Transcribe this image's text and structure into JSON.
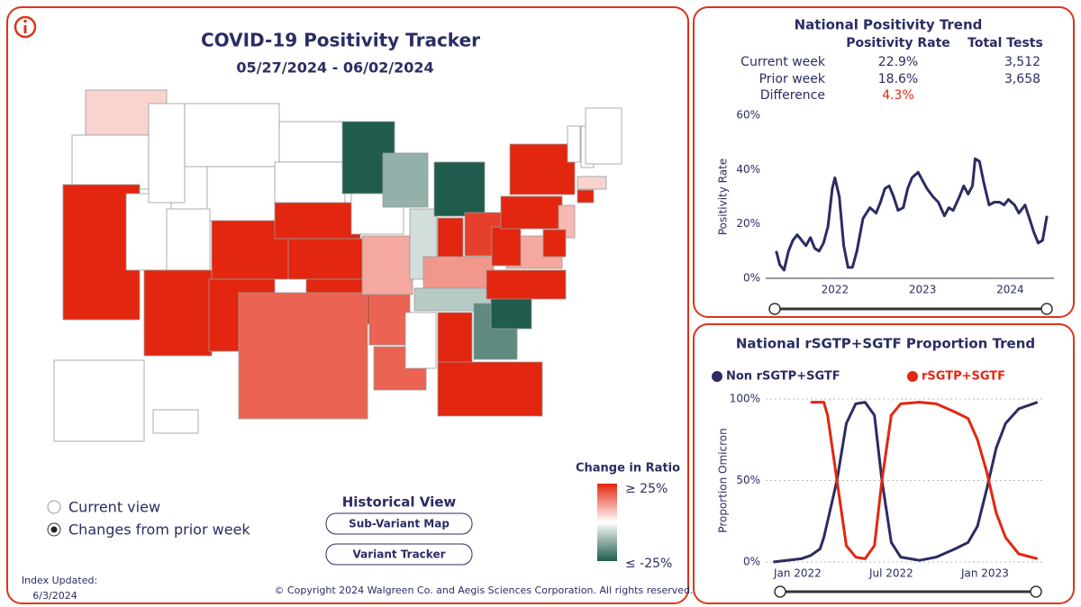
{
  "header": {
    "title": "COVID-19 Positivity Tracker",
    "date_range": "05/27/2024 - 06/02/2024"
  },
  "view_options": {
    "options": [
      "Current view",
      "Changes from prior week"
    ],
    "selected": 1
  },
  "historical_view": {
    "title": "Historical View",
    "buttons": [
      "Sub-Variant Map",
      "Variant Tracker"
    ]
  },
  "index_updated": {
    "label": "Index Updated:",
    "date": "6/3/2024"
  },
  "copyright": "© Copyright 2024 Walgreen Co. and Aegis Sciences Corporation. All rights reserved.",
  "summary": {
    "title": "National Positivity Trend",
    "columns": [
      "Positivity Rate",
      "Total Tests"
    ],
    "rows": [
      [
        "Current week",
        "22.9%",
        "3,512"
      ],
      [
        "Prior week",
        "18.6%",
        "3,658"
      ],
      [
        "Difference",
        "4.3%"
      ]
    ]
  },
  "chart_data": [
    {
      "type": "choropleth",
      "legend_title": "Change in Ratio",
      "scale": [
        {
          "value": 25,
          "label": "≥ 25%"
        },
        {
          "value": -25,
          "label": "≤ -25%"
        }
      ],
      "colors": {
        "high": "#e3260f",
        "mid": "#ffffff",
        "low": "#1f5c4e"
      },
      "values": [
        5,
        0,
        25,
        0,
        0,
        0,
        0,
        0,
        25,
        25,
        25,
        0,
        0,
        25,
        25,
        25,
        18,
        -25,
        0,
        10,
        18,
        18,
        -12,
        -5,
        -25,
        25,
        22,
        12,
        -8,
        0,
        25,
        -18,
        25,
        -25,
        25,
        10,
        25,
        25,
        25,
        0,
        0,
        0,
        5,
        25,
        8,
        25,
        0,
        0
      ]
    },
    {
      "type": "line",
      "y_label": "Positivity Rate",
      "color": "#2b2c63",
      "x": [
        2021.33,
        2021.37,
        2021.42,
        2021.47,
        2021.52,
        2021.57,
        2021.62,
        2021.67,
        2021.72,
        2021.77,
        2021.82,
        2021.87,
        2021.92,
        2021.97,
        2022.0,
        2022.05,
        2022.1,
        2022.15,
        2022.2,
        2022.25,
        2022.32,
        2022.4,
        2022.47,
        2022.52,
        2022.57,
        2022.62,
        2022.67,
        2022.72,
        2022.78,
        2022.83,
        2022.88,
        2022.95,
        2023.0,
        2023.05,
        2023.12,
        2023.18,
        2023.25,
        2023.3,
        2023.35,
        2023.42,
        2023.47,
        2023.52,
        2023.57,
        2023.6,
        2023.65,
        2023.7,
        2023.76,
        2023.82,
        2023.88,
        2023.93,
        2023.98,
        2024.05,
        2024.1,
        2024.17,
        2024.22,
        2024.27,
        2024.32,
        2024.37,
        2024.42
      ],
      "values": [
        10,
        5,
        3,
        10,
        14,
        16,
        14,
        12,
        15,
        11,
        10,
        13,
        19,
        33,
        37,
        30,
        12,
        4,
        4,
        10,
        22,
        26,
        24,
        28,
        33,
        34,
        30,
        25,
        26,
        33,
        37,
        39,
        36,
        33,
        30,
        28,
        23,
        26,
        25,
        30,
        34,
        31,
        34,
        44,
        43,
        35,
        27,
        28,
        28,
        27,
        29,
        27,
        24,
        27,
        22,
        17,
        13,
        14,
        23
      ],
      "xlim": [
        2021.21,
        2024.5
      ],
      "xticks": [
        2022,
        2023,
        2024
      ],
      "ylim": [
        0,
        60
      ],
      "yticks": [
        {
          "value": 0,
          "label": "0%"
        },
        {
          "value": 20,
          "label": "20%"
        },
        {
          "value": 40,
          "label": "40%"
        },
        {
          "value": 60,
          "label": "60%"
        }
      ],
      "grid": false
    },
    {
      "type": "line",
      "title": "National rSGTP+SGTF Proportion Trend",
      "y_label": "Proportion Omicron",
      "x": [
        2021.87,
        2022.02,
        2022.07,
        2022.12,
        2022.14,
        2022.16,
        2022.21,
        2022.26,
        2022.31,
        2022.36,
        2022.41,
        2022.45,
        2022.5,
        2022.55,
        2022.65,
        2022.74,
        2022.84,
        2022.91,
        2022.96,
        2023.01,
        2023.06,
        2023.11,
        2023.18,
        2023.28
      ],
      "series": [
        {
          "name": "Non rSGTP+SGTF",
          "color": "#2b2c63",
          "values": [
            0,
            2,
            4,
            8,
            15,
            25,
            50,
            85,
            97,
            98,
            90,
            50,
            12,
            3,
            1,
            3,
            8,
            12,
            22,
            45,
            70,
            85,
            94,
            98
          ]
        },
        {
          "name": "rSGTP+SGTF",
          "color": "#e3260f",
          "values": [
            null,
            null,
            98,
            98,
            98,
            90,
            50,
            10,
            3,
            2,
            10,
            50,
            90,
            97,
            98,
            97,
            92,
            88,
            75,
            55,
            30,
            15,
            5,
            2
          ]
        }
      ],
      "xlim": [
        2021.83,
        2023.32
      ],
      "xticks": [
        {
          "value": 2022,
          "label": "Jan 2022"
        },
        {
          "value": 2022.5,
          "label": "Jul 2022"
        },
        {
          "value": 2023,
          "label": "Jan 2023"
        }
      ],
      "ylim": [
        0,
        100
      ],
      "yticks": [
        {
          "value": 0,
          "label": "0%"
        },
        {
          "value": 50,
          "label": "50%"
        },
        {
          "value": 100,
          "label": "100%"
        }
      ],
      "grid": true
    }
  ]
}
